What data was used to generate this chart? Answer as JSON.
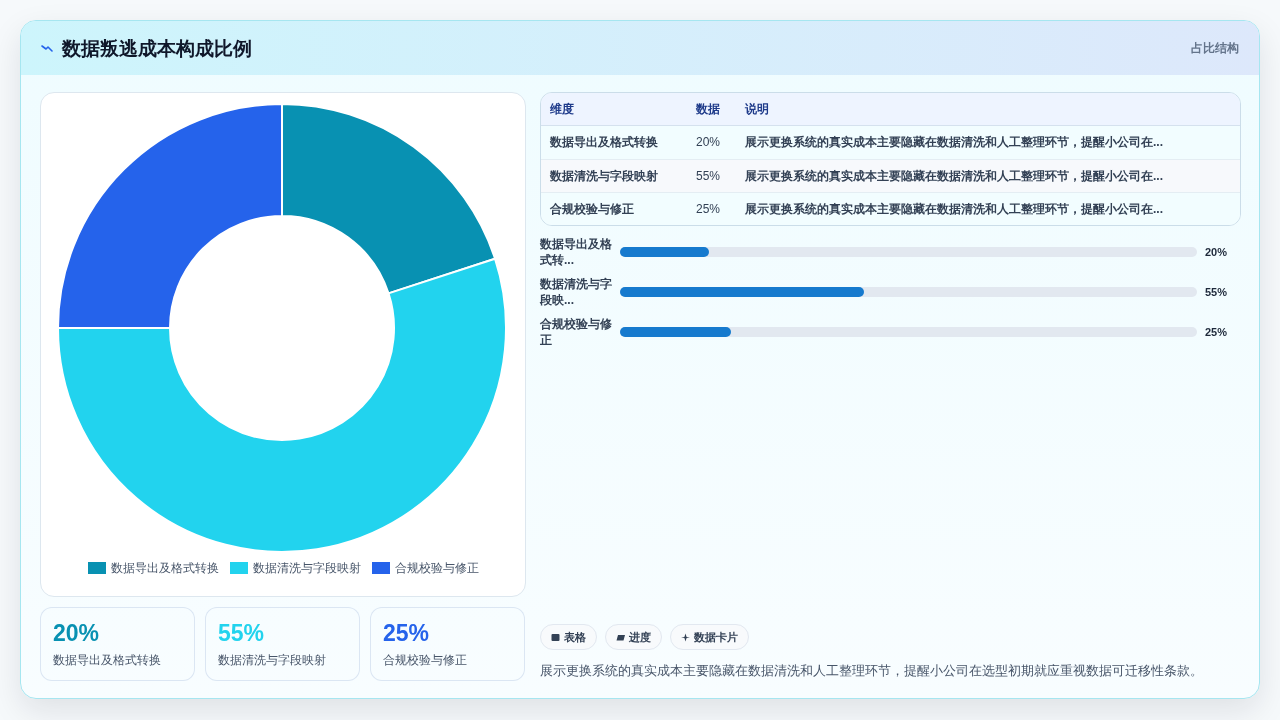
{
  "chart_data": [
    {
      "type": "donut",
      "title": "数据叛逃成本构成比例",
      "categories": [
        "数据导出及格式转换",
        "数据清洗与字段映射",
        "合规校验与修正"
      ],
      "values": [
        20,
        55,
        25
      ],
      "colors": [
        "#0891b2",
        "#22d3ee",
        "#2563eb"
      ],
      "legend": "bottom"
    },
    {
      "type": "other",
      "subtitle": "占比结构",
      "categories": [
        "数据导出及格式转换",
        "数据清洗与字段映射",
        "合规校验与修正"
      ],
      "value_labels": [
        "20%",
        "55%",
        "25%"
      ],
      "annotations": [
        "维度",
        "数据",
        "说明",
        "展示更换系统的真实成本主要隐藏在数据清洗和人工整理环节，提醒小公司在...",
        "展示更换系统的真实成本主要隐藏在数据清洗和人工整理环节，提醒小公司在...",
        "展示更换系统的真实成本主要隐藏在数据清洗和人工整理环节，提醒小公司在..."
      ]
    },
    {
      "type": "bar",
      "orientation": "horizontal",
      "categories": [
        "数据导出及格式转...",
        "数据清洗与字段映...",
        "合规校验与修正"
      ],
      "values": [
        20,
        55,
        25
      ],
      "value_labels": [
        "20%",
        "55%",
        "25%"
      ],
      "color": "#167ace",
      "xlim": [
        0,
        130
      ],
      "tick_labels": "y"
    },
    {
      "type": "other",
      "categories": [
        "数据导出及格式转换",
        "数据清洗与字段映射",
        "合规校验与修正"
      ],
      "value_labels": [
        "20%",
        "55%",
        "25%"
      ],
      "colors": [
        "#0891b2",
        "#22d3ee",
        "#2563eb"
      ]
    },
    {
      "type": "other",
      "categories": [
        "表格",
        "进度",
        "数据卡片"
      ],
      "annotations": [
        "展示更换系统的真实成本主要隐藏在数据清洗和人工整理环节，提醒小公司在选型初期就应重视数据可迁移性条款。"
      ]
    }
  ]
}
